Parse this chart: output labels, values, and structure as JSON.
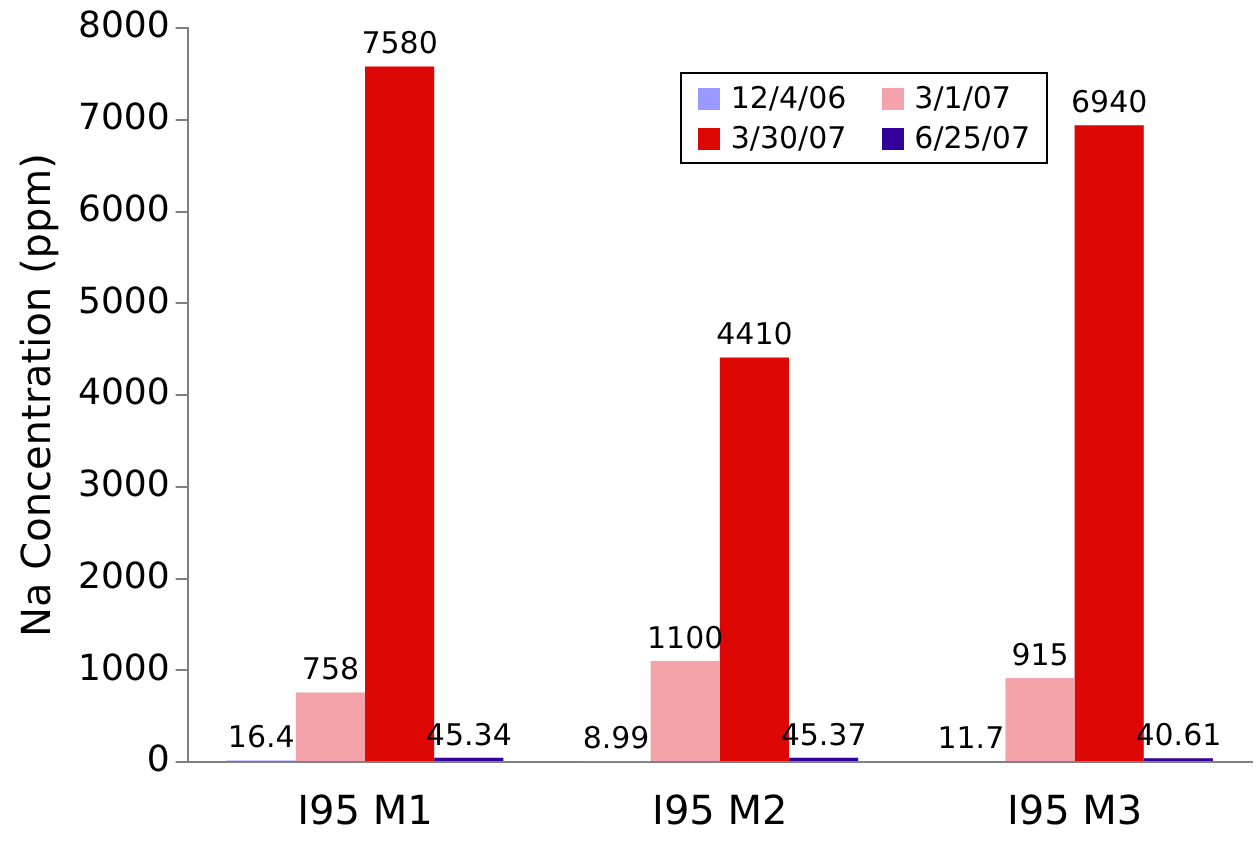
{
  "chart_data": {
    "type": "bar",
    "ylabel": "Na Concentration (ppm)",
    "categories": [
      "I95 M1",
      "I95 M2",
      "I95 M3"
    ],
    "series": [
      {
        "name": "12/4/06",
        "color": "#9999ff",
        "values": [
          16.4,
          8.99,
          11.7
        ]
      },
      {
        "name": "3/1/07",
        "color": "#f4a3ab",
        "values": [
          758,
          1100,
          915
        ]
      },
      {
        "name": "3/30/07",
        "color": "#dd0806",
        "values": [
          7580,
          4410,
          6940
        ]
      },
      {
        "name": "6/25/07",
        "color": "#330099",
        "values": [
          45.34,
          45.37,
          40.61
        ]
      }
    ],
    "ylim": [
      0,
      8000
    ],
    "yticks": [
      0,
      1000,
      2000,
      3000,
      4000,
      5000,
      6000,
      7000,
      8000
    ],
    "grid": false,
    "legend": "top right",
    "data_labels": true
  }
}
